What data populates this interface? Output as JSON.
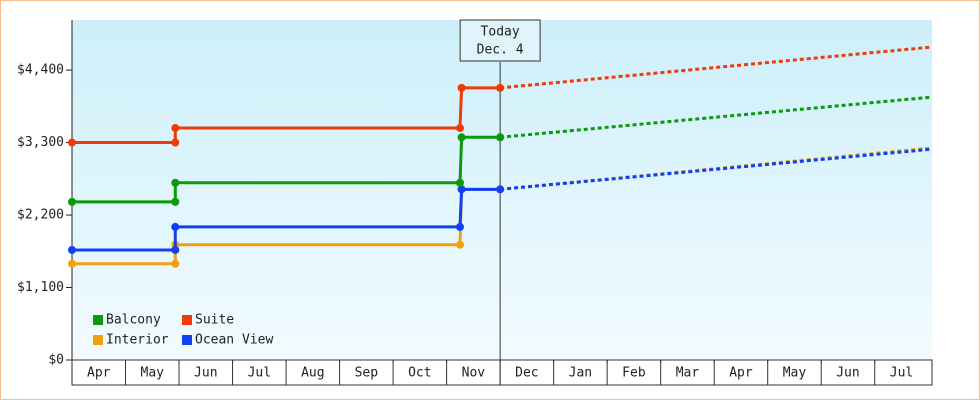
{
  "chart_data": {
    "type": "line",
    "categories": [
      "Apr",
      "May",
      "Jun",
      "Jul",
      "Aug",
      "Sep",
      "Oct",
      "Nov",
      "Dec",
      "Jan",
      "Feb",
      "Mar",
      "Apr",
      "May",
      "Jun",
      "Jul"
    ],
    "xlim": [
      0,
      16.07
    ],
    "ylim": [
      0,
      5160
    ],
    "yticks": [
      {
        "value": 0,
        "label": "$0"
      },
      {
        "value": 1100,
        "label": "$1,100"
      },
      {
        "value": 2200,
        "label": "$2,200"
      },
      {
        "value": 3300,
        "label": "$3,300"
      },
      {
        "value": 4400,
        "label": "$4,400"
      }
    ],
    "today": {
      "lines": [
        "Today",
        "Dec. 4"
      ],
      "x": 8.0
    },
    "legend": "lower left",
    "series": [
      {
        "name": "Balcony",
        "color": "#0a9a0a",
        "x": [
          0,
          1.93,
          1.93,
          7.25,
          7.28,
          8.0
        ],
        "values": [
          2400,
          2400,
          2690,
          2690,
          3380,
          3380
        ],
        "forecast": {
          "x": [
            8.0,
            16.07
          ],
          "values": [
            3380,
            3990
          ]
        }
      },
      {
        "name": "Suite",
        "color": "#f03a0a",
        "x": [
          0,
          1.93,
          1.93,
          7.25,
          7.28,
          8.0
        ],
        "values": [
          3300,
          3300,
          3520,
          3520,
          4130,
          4130
        ],
        "forecast": {
          "x": [
            8.0,
            16.07
          ],
          "values": [
            4130,
            4750
          ]
        }
      },
      {
        "name": "Interior",
        "color": "#f0a010",
        "x": [
          0,
          1.93,
          1.93,
          7.25,
          7.28,
          8.0
        ],
        "values": [
          1460,
          1460,
          1750,
          1750,
          2590,
          2590
        ],
        "forecast": {
          "x": [
            8.0,
            16.07
          ],
          "values": [
            2590,
            3220
          ]
        }
      },
      {
        "name": "Ocean View",
        "color": "#1040f0",
        "x": [
          0,
          1.93,
          1.93,
          7.25,
          7.28,
          8.0
        ],
        "values": [
          1670,
          1670,
          2020,
          2020,
          2590,
          2590
        ],
        "forecast": {
          "x": [
            8.0,
            16.07
          ],
          "values": [
            2590,
            3200
          ]
        }
      }
    ]
  }
}
